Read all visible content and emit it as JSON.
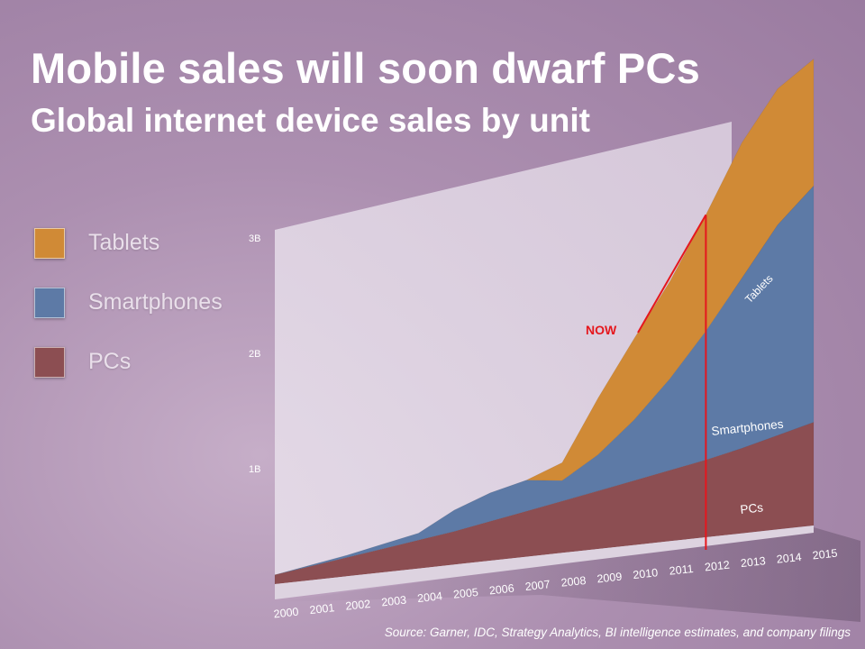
{
  "header": {
    "title": "Mobile sales will soon dwarf PCs",
    "subtitle": "Global internet device sales by unit"
  },
  "legend": [
    {
      "label": "Tablets",
      "color": "#d08a36"
    },
    {
      "label": "Smartphones",
      "color": "#5d7aa6"
    },
    {
      "label": "PCs",
      "color": "#8c4e52"
    }
  ],
  "source": "Source: Garner, IDC, Strategy Analytics, BI intelligence estimates, and company filings",
  "chart_data": {
    "type": "area",
    "stacked": true,
    "title": "Global internet device sales by unit",
    "x": [
      "2000",
      "2001",
      "2002",
      "2003",
      "2004",
      "2005",
      "2006",
      "2007",
      "2008",
      "2009",
      "2010",
      "2011",
      "2012",
      "2013",
      "2014",
      "2015"
    ],
    "ylim": [
      0,
      3000000000
    ],
    "y_ticks": [
      {
        "value": 1000000000,
        "label": "1B"
      },
      {
        "value": 2000000000,
        "label": "2B"
      },
      {
        "value": 3000000000,
        "label": "3B"
      }
    ],
    "series": [
      {
        "name": "PCs",
        "color": "#8c4e52",
        "values": [
          0.08,
          0.12,
          0.16,
          0.2,
          0.24,
          0.28,
          0.33,
          0.38,
          0.43,
          0.48,
          0.53,
          0.58,
          0.63,
          0.69,
          0.76,
          0.83
        ]
      },
      {
        "name": "Smartphones",
        "color": "#5d7aa6",
        "values": [
          0.0,
          0.01,
          0.02,
          0.04,
          0.06,
          0.18,
          0.24,
          0.26,
          0.17,
          0.3,
          0.5,
          0.75,
          1.05,
          1.38,
          1.7,
          1.9
        ]
      },
      {
        "name": "Tablets",
        "color": "#d08a36",
        "values": [
          0.0,
          0.0,
          0.0,
          0.0,
          0.0,
          0.0,
          0.0,
          0.0,
          0.15,
          0.47,
          0.67,
          0.8,
          0.95,
          1.1,
          1.1,
          1.02
        ]
      }
    ],
    "series_labels": [
      "Tablets",
      "Smartphones",
      "PCs"
    ],
    "annotations": [
      {
        "text": "NOW",
        "color": "#e5171d",
        "x": "2012"
      }
    ],
    "grid": false,
    "legend_position": "left"
  }
}
